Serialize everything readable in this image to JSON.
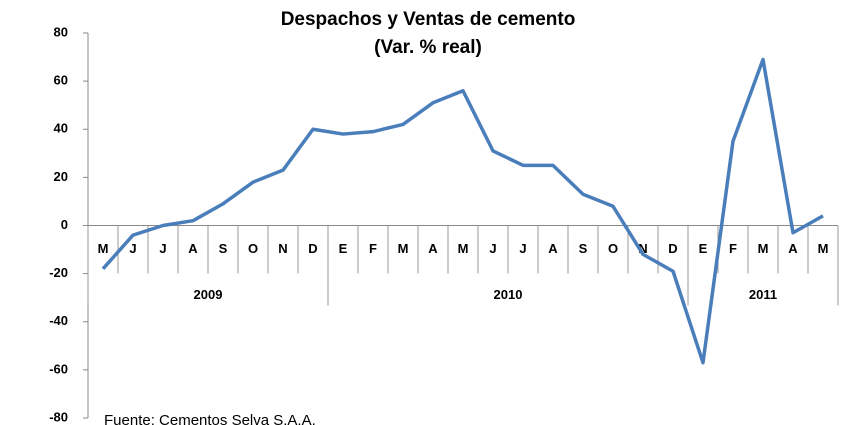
{
  "chart_data": {
    "type": "line",
    "title": "Despachos y Ventas de cemento",
    "subtitle": "(Var. % real)",
    "source": "Fuente: Cementos Selva S.A.A.",
    "categories": [
      "M",
      "J",
      "J",
      "A",
      "S",
      "O",
      "N",
      "D",
      "E",
      "F",
      "M",
      "A",
      "M",
      "J",
      "J",
      "A",
      "S",
      "O",
      "N",
      "D",
      "E",
      "F",
      "M",
      "A",
      "M"
    ],
    "years": [
      "2009",
      "2010",
      "2011"
    ],
    "series": [
      {
        "color": "#4a7ebb",
        "values": [
          -18,
          -4,
          0,
          2,
          9,
          18,
          23,
          40,
          38,
          39,
          42,
          51,
          56,
          31,
          25,
          25,
          13,
          8,
          -12,
          -19,
          -57,
          35,
          69,
          -3,
          4
        ]
      }
    ],
    "ylim": [
      -80,
      80
    ],
    "yticks": [
      -80,
      -60,
      -40,
      -20,
      0,
      20,
      40,
      60,
      80
    ],
    "grid": false
  }
}
